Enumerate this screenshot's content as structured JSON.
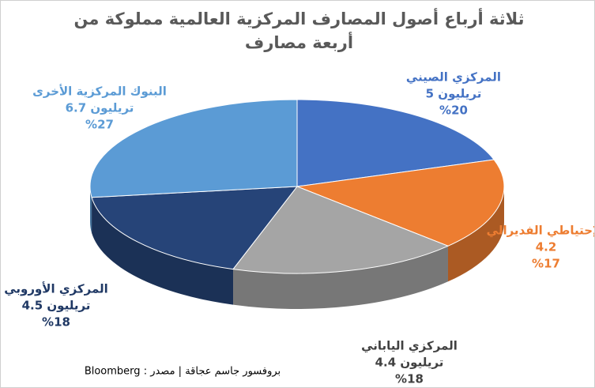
{
  "chart_data": {
    "type": "pie3d",
    "title": "ثلاثة أرباع أصول المصارف المركزية العالمية مملوكة من أربعة مصارف",
    "categories": [
      "المركزي الصيني",
      "الإحتياطي الفديرالي",
      "المركزي الياباني",
      "المركزي الأوروبي",
      "البنوك المركزية الأخرى"
    ],
    "amount_labels": [
      "5 تريليون",
      "4.2",
      "4.4 تريليون",
      "4.5 تريليون",
      "6.7 تريليون"
    ],
    "values": [
      20,
      17,
      18,
      18,
      27
    ],
    "value_labels": [
      "%20",
      "%17",
      "%18",
      "%18",
      "%27"
    ],
    "colors": [
      "#4472c4",
      "#ed7d31",
      "#a5a5a5",
      "#264478",
      "#5b9bd5"
    ],
    "label_colors": [
      "#4472c4",
      "#ed7d31",
      "#404040",
      "#1f3864",
      "#5b9bd5"
    ],
    "source": "بروفسور جاسم عجاقة | مصدر : Bloomberg"
  }
}
